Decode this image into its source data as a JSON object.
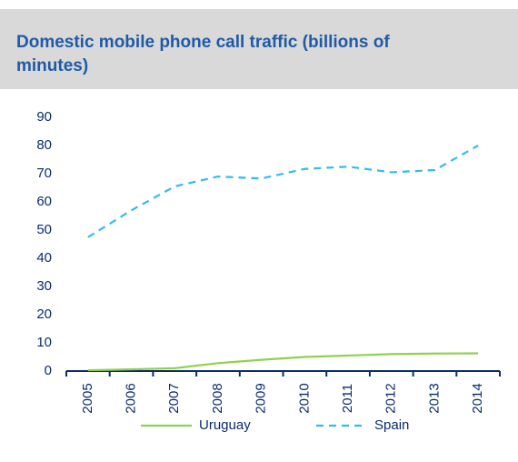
{
  "chart_data": {
    "type": "line",
    "title": "Domestic mobile phone call traffic (billions of minutes)",
    "categories": [
      "2005",
      "2006",
      "2007",
      "2008",
      "2009",
      "2010",
      "2011",
      "2012",
      "2013",
      "2014"
    ],
    "series": [
      {
        "name": "Uruguay",
        "color": "#92d050",
        "dash": false,
        "values": [
          0.3,
          0.6,
          1,
          2.8,
          4,
          5,
          5.5,
          6,
          6.2,
          6.3
        ]
      },
      {
        "name": "Spain",
        "color": "#33bbee",
        "dash": true,
        "values": [
          47.5,
          57,
          65.5,
          69,
          68.3,
          71.7,
          72.5,
          70.5,
          71.3,
          80
        ]
      }
    ],
    "ylim": [
      0,
      90
    ],
    "yticks": [
      0,
      10,
      20,
      30,
      40,
      50,
      60,
      70,
      80,
      90
    ],
    "legend": "bottom"
  }
}
